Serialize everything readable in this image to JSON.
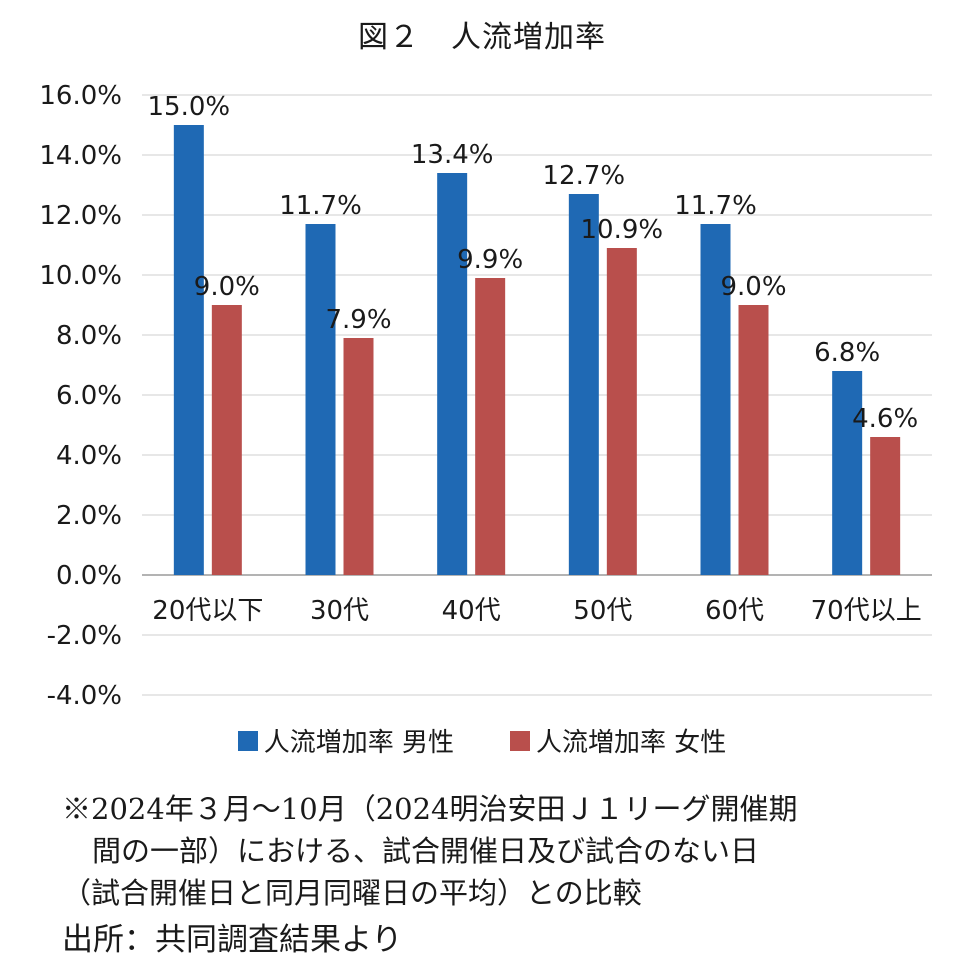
{
  "chart_data": {
    "type": "bar",
    "title": "図２　人流増加率",
    "categories": [
      "20代以下",
      "30代",
      "40代",
      "50代",
      "60代",
      "70代以上"
    ],
    "series": [
      {
        "name": "人流増加率 男性",
        "color": "#1f69b4",
        "values": [
          15.0,
          11.7,
          13.4,
          12.7,
          11.7,
          6.8
        ],
        "labels": [
          "15.0%",
          "11.7%",
          "13.4%",
          "12.7%",
          "11.7%",
          "6.8%"
        ]
      },
      {
        "name": "人流増加率 女性",
        "color": "#b94f4c",
        "values": [
          9.0,
          7.9,
          9.9,
          10.9,
          9.0,
          4.6
        ],
        "labels": [
          "9.0%",
          "7.9%",
          "9.9%",
          "10.9%",
          "9.0%",
          "4.6%"
        ]
      }
    ],
    "ylim": [
      -4.0,
      16.0
    ],
    "yticks": [
      16.0,
      14.0,
      12.0,
      10.0,
      8.0,
      6.0,
      4.0,
      2.0,
      0.0,
      -2.0,
      -4.0
    ],
    "ytick_labels": [
      "16.0%",
      "14.0%",
      "12.0%",
      "10.0%",
      "8.0%",
      "6.0%",
      "4.0%",
      "2.0%",
      "0.0%",
      "-2.0%",
      "-4.0%"
    ],
    "grid": true,
    "legend_position": "bottom"
  },
  "legend": {
    "male_label": "人流増加率  男性",
    "female_label": "人流増加率  女性"
  },
  "note": {
    "line1": "※2024年３月～10月（2024明治安田Ｊ１リーグ開催期",
    "line2": "間の一部）における、試合開催日及び試合のない日",
    "line3": "（試合開催日と同月同曜日の平均）との比較"
  },
  "source": "出所：共同調査結果より"
}
